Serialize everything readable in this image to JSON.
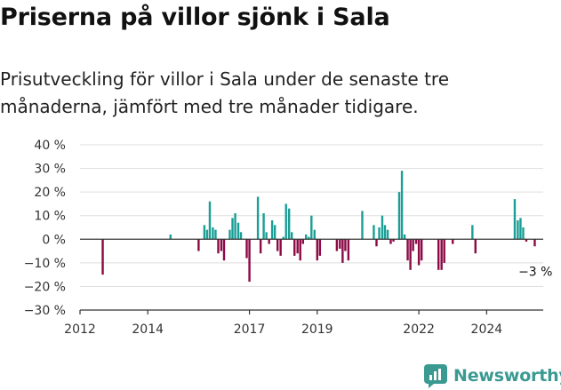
{
  "title": "Priserna på villor sjönk i Sala",
  "subtitle": "Prisutveckling för villor i Sala under de senaste tre månaderna, jämfört med tre månader tidigare.",
  "brand": {
    "name": "Newsworthy"
  },
  "colors": {
    "positive": "#1a9e95",
    "negative": "#8c0a45",
    "axis": "#333333",
    "grid": "#dddddd",
    "brand": "#3a9a92"
  },
  "chart_data": {
    "type": "bar",
    "title": "",
    "xlabel": "",
    "ylabel": "",
    "ylim": [
      -30,
      40
    ],
    "xlim": [
      2012.0,
      2025.67
    ],
    "y_ticks": [
      {
        "value": 40,
        "label": "40 %"
      },
      {
        "value": 30,
        "label": "30 %"
      },
      {
        "value": 20,
        "label": "20 %"
      },
      {
        "value": 10,
        "label": "10 %"
      },
      {
        "value": 0,
        "label": "0 %"
      },
      {
        "value": -10,
        "label": "−10 %"
      },
      {
        "value": -20,
        "label": "−20 %"
      },
      {
        "value": -30,
        "label": "−30 %"
      }
    ],
    "x_ticks": [
      {
        "value": 2012,
        "label": "2012"
      },
      {
        "value": 2014,
        "label": "2014"
      },
      {
        "value": 2017,
        "label": "2017"
      },
      {
        "value": 2019,
        "label": "2019"
      },
      {
        "value": 2022,
        "label": "2022"
      },
      {
        "value": 2024,
        "label": "2024"
      }
    ],
    "annotation": {
      "x": 2025.42,
      "y": -3,
      "label": "−3 %"
    },
    "points": [
      {
        "x": 2012.67,
        "y": -15
      },
      {
        "x": 2014.67,
        "y": 2
      },
      {
        "x": 2015.5,
        "y": -5
      },
      {
        "x": 2015.67,
        "y": 6
      },
      {
        "x": 2015.75,
        "y": 4
      },
      {
        "x": 2015.83,
        "y": 16
      },
      {
        "x": 2015.92,
        "y": 5
      },
      {
        "x": 2016.0,
        "y": 4
      },
      {
        "x": 2016.08,
        "y": -6
      },
      {
        "x": 2016.17,
        "y": -5
      },
      {
        "x": 2016.25,
        "y": -9
      },
      {
        "x": 2016.42,
        "y": 4
      },
      {
        "x": 2016.5,
        "y": 9
      },
      {
        "x": 2016.58,
        "y": 11
      },
      {
        "x": 2016.67,
        "y": 7
      },
      {
        "x": 2016.75,
        "y": 3
      },
      {
        "x": 2016.92,
        "y": -8
      },
      {
        "x": 2017.0,
        "y": -18
      },
      {
        "x": 2017.25,
        "y": 18
      },
      {
        "x": 2017.33,
        "y": -6
      },
      {
        "x": 2017.42,
        "y": 11
      },
      {
        "x": 2017.5,
        "y": 3
      },
      {
        "x": 2017.58,
        "y": -2
      },
      {
        "x": 2017.67,
        "y": 8
      },
      {
        "x": 2017.75,
        "y": 6
      },
      {
        "x": 2017.83,
        "y": -5
      },
      {
        "x": 2017.92,
        "y": -7
      },
      {
        "x": 2018.0,
        "y": 1
      },
      {
        "x": 2018.08,
        "y": 15
      },
      {
        "x": 2018.17,
        "y": 13
      },
      {
        "x": 2018.25,
        "y": 3
      },
      {
        "x": 2018.33,
        "y": -7
      },
      {
        "x": 2018.42,
        "y": -6
      },
      {
        "x": 2018.5,
        "y": -9
      },
      {
        "x": 2018.58,
        "y": -2
      },
      {
        "x": 2018.67,
        "y": 2
      },
      {
        "x": 2018.75,
        "y": 1
      },
      {
        "x": 2018.83,
        "y": 10
      },
      {
        "x": 2018.92,
        "y": 4
      },
      {
        "x": 2019.0,
        "y": -9
      },
      {
        "x": 2019.08,
        "y": -7
      },
      {
        "x": 2019.58,
        "y": -5
      },
      {
        "x": 2019.67,
        "y": -4
      },
      {
        "x": 2019.75,
        "y": -10
      },
      {
        "x": 2019.83,
        "y": -5
      },
      {
        "x": 2019.92,
        "y": -9
      },
      {
        "x": 2020.33,
        "y": 12
      },
      {
        "x": 2020.67,
        "y": 6
      },
      {
        "x": 2020.75,
        "y": -3
      },
      {
        "x": 2020.83,
        "y": 5
      },
      {
        "x": 2020.92,
        "y": 10
      },
      {
        "x": 2021.0,
        "y": 6
      },
      {
        "x": 2021.08,
        "y": 4
      },
      {
        "x": 2021.17,
        "y": -2
      },
      {
        "x": 2021.25,
        "y": -1
      },
      {
        "x": 2021.42,
        "y": 20
      },
      {
        "x": 2021.5,
        "y": 29
      },
      {
        "x": 2021.58,
        "y": 2
      },
      {
        "x": 2021.67,
        "y": -9
      },
      {
        "x": 2021.75,
        "y": -13
      },
      {
        "x": 2021.83,
        "y": -5
      },
      {
        "x": 2021.92,
        "y": -2
      },
      {
        "x": 2022.0,
        "y": -11
      },
      {
        "x": 2022.08,
        "y": -9
      },
      {
        "x": 2022.58,
        "y": -13
      },
      {
        "x": 2022.67,
        "y": -13
      },
      {
        "x": 2022.75,
        "y": -10
      },
      {
        "x": 2023.0,
        "y": -2
      },
      {
        "x": 2023.58,
        "y": 6
      },
      {
        "x": 2023.67,
        "y": -6
      },
      {
        "x": 2024.83,
        "y": 17
      },
      {
        "x": 2024.92,
        "y": 8
      },
      {
        "x": 2025.0,
        "y": 9
      },
      {
        "x": 2025.08,
        "y": 5
      },
      {
        "x": 2025.17,
        "y": -1
      },
      {
        "x": 2025.42,
        "y": -3
      }
    ]
  }
}
